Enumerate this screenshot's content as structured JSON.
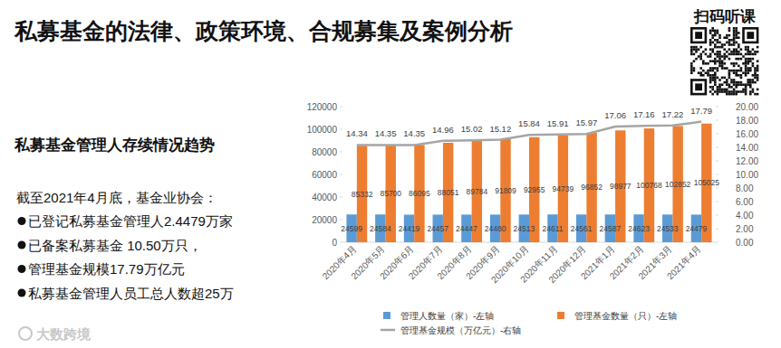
{
  "slide": {
    "title": "私募基金的法律、政策环境、合规募集及案例分析",
    "qr_label": "扫码听课",
    "heading": "私募基金管理人存续情况趋势",
    "intro": "截至2021年4月底，基金业协会：",
    "bullets": [
      "已登记私募基金管理人2.4479万家",
      "已备案私募基金 10.50万只，",
      "管理基金规模17.79万亿元",
      "私募基金管理人员工总人数超25万"
    ],
    "footer": "大数跨境"
  },
  "chart_data": {
    "type": "bar",
    "categories": [
      "2020年4月",
      "2020年5月",
      "2020年6月",
      "2020年7月",
      "2020年8月",
      "2020年9月",
      "2020年10月",
      "2020年11月",
      "2020年12月",
      "2021年1月",
      "2021年2月",
      "2021年3月",
      "2021年4月"
    ],
    "series": [
      {
        "name": "管理人数量（家）-左轴",
        "type": "bar",
        "color": "#5B9BD5",
        "values": [
          24599,
          24584,
          24419,
          24457,
          24447,
          24480,
          24513,
          24611,
          24561,
          24587,
          24623,
          24533,
          24479
        ]
      },
      {
        "name": "管理基金数量（只）-左轴",
        "type": "bar",
        "color": "#ED7D31",
        "values": [
          85332,
          85700,
          86095,
          88051,
          89784,
          91809,
          92955,
          94739,
          96852,
          98977,
          100768,
          102852,
          105025
        ]
      },
      {
        "name": "管理基金规模（万亿元）-右轴",
        "type": "line",
        "axis": "y2",
        "color": "#A5A5A5",
        "values": [
          14.34,
          14.35,
          14.35,
          14.96,
          15.02,
          15.12,
          15.84,
          15.91,
          15.97,
          17.06,
          17.16,
          17.22,
          17.79
        ]
      }
    ],
    "ylim": [
      0,
      120000
    ],
    "yticks": [
      0,
      20000,
      40000,
      60000,
      80000,
      100000,
      120000
    ],
    "y2lim": [
      0,
      20
    ],
    "y2ticks": [
      {
        "value": 0,
        "label": "0.00"
      },
      {
        "value": 2,
        "label": "2.00"
      },
      {
        "value": 4,
        "label": "4.00"
      },
      {
        "value": 6,
        "label": "6.00"
      },
      {
        "value": 8,
        "label": "8.00"
      },
      {
        "value": 10,
        "label": "10.00"
      },
      {
        "value": 12,
        "label": "12.00"
      },
      {
        "value": 14,
        "label": "14.00"
      },
      {
        "value": 16,
        "label": "16.00"
      },
      {
        "value": 18,
        "label": "18.00"
      },
      {
        "value": 20,
        "label": "20.00"
      }
    ],
    "data_labels": true,
    "legend": "bottom",
    "grid": false
  }
}
